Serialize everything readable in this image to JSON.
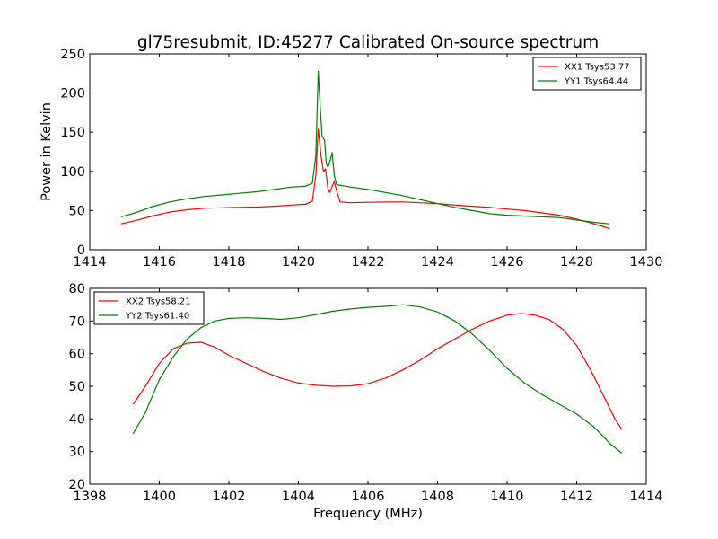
{
  "figure": {
    "title": "gl75resubmit, ID:45277 Calibrated On-source spectrum"
  },
  "chart_data": [
    {
      "type": "line",
      "title": "gl75resubmit, ID:45277 Calibrated On-source spectrum",
      "xlabel": "",
      "ylabel": "Power in Kelvin",
      "xlim": [
        1414,
        1430
      ],
      "ylim": [
        0,
        250
      ],
      "xticks": [
        1414,
        1416,
        1418,
        1420,
        1422,
        1424,
        1426,
        1428,
        1430
      ],
      "yticks": [
        0,
        50,
        100,
        150,
        200,
        250
      ],
      "grid": false,
      "legend_position": "top-right",
      "series": [
        {
          "name": "XX1 Tsys53.77",
          "color": "#ff0000",
          "points": [
            [
              1414.9,
              33
            ],
            [
              1415.3,
              37
            ],
            [
              1415.8,
              43
            ],
            [
              1416.3,
              48
            ],
            [
              1416.8,
              51
            ],
            [
              1417.3,
              53
            ],
            [
              1417.8,
              53.5
            ],
            [
              1418.3,
              54
            ],
            [
              1418.8,
              54.5
            ],
            [
              1419.3,
              55.5
            ],
            [
              1419.8,
              57
            ],
            [
              1420.2,
              58
            ],
            [
              1420.4,
              62
            ],
            [
              1420.5,
              95
            ],
            [
              1420.57,
              154
            ],
            [
              1420.65,
              120
            ],
            [
              1420.72,
              100
            ],
            [
              1420.78,
              103
            ],
            [
              1420.85,
              78
            ],
            [
              1420.9,
              73
            ],
            [
              1420.98,
              82
            ],
            [
              1421.03,
              87
            ],
            [
              1421.1,
              75
            ],
            [
              1421.2,
              61
            ],
            [
              1421.5,
              60
            ],
            [
              1422.0,
              60.5
            ],
            [
              1422.5,
              61
            ],
            [
              1423.0,
              61
            ],
            [
              1423.5,
              60
            ],
            [
              1424.0,
              59
            ],
            [
              1424.5,
              57
            ],
            [
              1425.0,
              55.5
            ],
            [
              1425.5,
              54
            ],
            [
              1426.0,
              52
            ],
            [
              1426.5,
              50
            ],
            [
              1427.0,
              47
            ],
            [
              1427.5,
              44
            ],
            [
              1428.0,
              39
            ],
            [
              1428.5,
              33
            ],
            [
              1428.95,
              27
            ]
          ]
        },
        {
          "name": "YY1 Tsys64.44",
          "color": "#008000",
          "points": [
            [
              1414.9,
              42
            ],
            [
              1415.3,
              47
            ],
            [
              1415.8,
              55
            ],
            [
              1416.3,
              61
            ],
            [
              1416.8,
              65
            ],
            [
              1417.3,
              68
            ],
            [
              1417.8,
              70
            ],
            [
              1418.3,
              72
            ],
            [
              1418.8,
              74
            ],
            [
              1419.3,
              77
            ],
            [
              1419.8,
              80
            ],
            [
              1420.2,
              81
            ],
            [
              1420.4,
              85
            ],
            [
              1420.5,
              120
            ],
            [
              1420.57,
              228
            ],
            [
              1420.63,
              180
            ],
            [
              1420.68,
              145
            ],
            [
              1420.75,
              140
            ],
            [
              1420.8,
              110
            ],
            [
              1420.85,
              105
            ],
            [
              1420.92,
              115
            ],
            [
              1420.97,
              124
            ],
            [
              1421.03,
              95
            ],
            [
              1421.1,
              83
            ],
            [
              1421.5,
              80
            ],
            [
              1422.0,
              77
            ],
            [
              1422.5,
              73
            ],
            [
              1423.0,
              69
            ],
            [
              1423.5,
              64
            ],
            [
              1424.0,
              59
            ],
            [
              1424.5,
              54
            ],
            [
              1425.0,
              50
            ],
            [
              1425.5,
              46
            ],
            [
              1426.0,
              44
            ],
            [
              1426.5,
              43
            ],
            [
              1427.0,
              42
            ],
            [
              1427.5,
              41
            ],
            [
              1428.0,
              38
            ],
            [
              1428.5,
              35
            ],
            [
              1428.95,
              33
            ]
          ]
        }
      ]
    },
    {
      "type": "line",
      "title": "",
      "xlabel": "Frequency (MHz)",
      "ylabel": "",
      "xlim": [
        1398,
        1414
      ],
      "ylim": [
        20,
        80
      ],
      "xticks": [
        1398,
        1400,
        1402,
        1404,
        1406,
        1408,
        1410,
        1412,
        1414
      ],
      "yticks": [
        20,
        30,
        40,
        50,
        60,
        70,
        80
      ],
      "grid": false,
      "legend_position": "top-left",
      "series": [
        {
          "name": "XX2 Tsys58.21",
          "color": "#ff0000",
          "points": [
            [
              1399.25,
              44.5
            ],
            [
              1399.6,
              50
            ],
            [
              1400.0,
              57
            ],
            [
              1400.4,
              61.5
            ],
            [
              1400.8,
              63.2
            ],
            [
              1401.2,
              63.5
            ],
            [
              1401.6,
              62
            ],
            [
              1402.0,
              59.5
            ],
            [
              1402.5,
              57
            ],
            [
              1403.0,
              54.5
            ],
            [
              1403.5,
              52.5
            ],
            [
              1404.0,
              51
            ],
            [
              1404.5,
              50.3
            ],
            [
              1405.0,
              50
            ],
            [
              1405.5,
              50.1
            ],
            [
              1406.0,
              50.8
            ],
            [
              1406.5,
              52.5
            ],
            [
              1407.0,
              55
            ],
            [
              1407.5,
              58
            ],
            [
              1408.0,
              61.5
            ],
            [
              1408.5,
              64.5
            ],
            [
              1409.0,
              67.5
            ],
            [
              1409.5,
              70
            ],
            [
              1410.0,
              71.8
            ],
            [
              1410.4,
              72.3
            ],
            [
              1410.8,
              71.8
            ],
            [
              1411.2,
              70.5
            ],
            [
              1411.6,
              67.5
            ],
            [
              1412.0,
              62.5
            ],
            [
              1412.4,
              55
            ],
            [
              1412.8,
              46.5
            ],
            [
              1413.1,
              40
            ],
            [
              1413.3,
              36.8
            ]
          ]
        },
        {
          "name": "YY2 Tsys61.40",
          "color": "#008000",
          "points": [
            [
              1399.25,
              35.5
            ],
            [
              1399.6,
              42
            ],
            [
              1400.0,
              52
            ],
            [
              1400.4,
              59
            ],
            [
              1400.8,
              64.5
            ],
            [
              1401.2,
              68
            ],
            [
              1401.6,
              70
            ],
            [
              1402.0,
              70.8
            ],
            [
              1402.5,
              71
            ],
            [
              1403.0,
              70.8
            ],
            [
              1403.5,
              70.5
            ],
            [
              1404.0,
              71
            ],
            [
              1404.5,
              72
            ],
            [
              1405.0,
              73
            ],
            [
              1405.5,
              73.7
            ],
            [
              1406.0,
              74.2
            ],
            [
              1406.5,
              74.5
            ],
            [
              1407.0,
              75
            ],
            [
              1407.5,
              74.3
            ],
            [
              1408.0,
              72.8
            ],
            [
              1408.5,
              70
            ],
            [
              1409.0,
              66
            ],
            [
              1409.5,
              61
            ],
            [
              1410.0,
              55.5
            ],
            [
              1410.5,
              51
            ],
            [
              1411.0,
              47.5
            ],
            [
              1411.5,
              44.5
            ],
            [
              1412.0,
              41.5
            ],
            [
              1412.5,
              37.5
            ],
            [
              1413.0,
              32
            ],
            [
              1413.3,
              29.5
            ]
          ]
        }
      ]
    }
  ]
}
